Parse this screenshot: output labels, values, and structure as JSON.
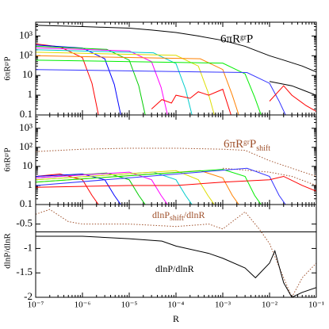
{
  "chart_data": [
    {
      "type": "line",
      "ylabel": "6πRᵍʳP",
      "annotation": "6πRᵍʳP",
      "annotation_color": "#000000",
      "xscale": "log",
      "yscale": "log",
      "xlim": [
        1e-07,
        0.1
      ],
      "xticks": [
        1e-07,
        1e-06,
        1e-05,
        0.0001,
        0.001,
        0.01,
        0.1
      ],
      "ylim": [
        0.1,
        5000
      ],
      "yticks": [
        0.1,
        1,
        10,
        {
          "value": 100,
          "label": "10²"
        },
        {
          "value": 1000,
          "label": "10³"
        }
      ],
      "series": [
        {
          "color": "#000000",
          "linestyle": "solid",
          "x": [
            1e-07,
            1e-06,
            1e-05,
            3e-05,
            0.0001,
            0.0003,
            0.001,
            0.003,
            0.01,
            0.02,
            0.05,
            0.1
          ],
          "values": [
            3500,
            3000,
            2500,
            2000,
            1500,
            1000,
            600,
            300,
            100,
            60,
            30,
            15
          ]
        },
        {
          "color": "#ff0000",
          "linestyle": "solid",
          "x": [
            1e-07,
            3.3e-07,
            1e-06,
            1.6e-06,
            2.2e-06
          ],
          "values": [
            400,
            280,
            80,
            4,
            0.1
          ]
        },
        {
          "color": "#0000ff",
          "linestyle": "solid",
          "x": [
            1e-07,
            1e-06,
            3e-06,
            4.8e-06,
            6.6e-06
          ],
          "values": [
            350,
            245,
            70,
            3.5,
            0.1
          ]
        },
        {
          "color": "#00cc00",
          "linestyle": "solid",
          "x": [
            1e-07,
            3.3e-06,
            1e-05,
            1.6e-05,
            2.2e-05
          ],
          "values": [
            300,
            210,
            60,
            3,
            0.1
          ]
        },
        {
          "color": "#ff00ff",
          "linestyle": "solid",
          "x": [
            1e-07,
            1e-05,
            3e-05,
            4.8e-05,
            6.6e-05
          ],
          "values": [
            250,
            175,
            50,
            2.5,
            0.1
          ]
        },
        {
          "color": "#00cccc",
          "linestyle": "solid",
          "x": [
            1e-07,
            3.3e-05,
            0.0001,
            0.00016,
            0.00022
          ],
          "values": [
            200,
            140,
            40,
            2,
            0.1
          ]
        },
        {
          "color": "#dddd00",
          "linestyle": "solid",
          "x": [
            1e-07,
            0.0001,
            0.0003,
            0.00048,
            0.00066
          ],
          "values": [
            150,
            105,
            30,
            1.5,
            0.1
          ]
        },
        {
          "color": "#ff8000",
          "linestyle": "solid",
          "x": [
            1e-07,
            0.00033,
            0.001,
            0.0016,
            0.0022
          ],
          "values": [
            100,
            70,
            20,
            1,
            0.1
          ]
        },
        {
          "color": "#00ee00",
          "linestyle": "solid",
          "x": [
            1e-07,
            0.001,
            0.003,
            0.0048,
            0.0066
          ],
          "values": [
            60,
            42,
            12,
            0.8,
            0.1
          ]
        },
        {
          "color": "#3333ff",
          "linestyle": "solid",
          "x": [
            1e-07,
            0.0033,
            0.01,
            0.016,
            0.022
          ],
          "values": [
            20,
            14,
            4,
            0.5,
            0.1
          ]
        },
        {
          "color": "#ff0000",
          "linestyle": "solid",
          "x": [
            3e-05,
            5e-05,
            8e-05,
            0.0001,
            0.0002,
            0.0003,
            0.0005,
            0.001,
            0.0015
          ],
          "values": [
            0.2,
            0.6,
            0.4,
            1,
            0.7,
            1.5,
            1,
            2,
            0.1
          ]
        },
        {
          "color": "#ff0000",
          "linestyle": "solid",
          "x": [
            0.01,
            0.02,
            0.03,
            0.06,
            0.1
          ],
          "values": [
            0.5,
            3,
            1,
            0.3,
            0.15
          ]
        },
        {
          "color": "#000000",
          "linestyle": "solid",
          "x": [
            0.01,
            0.03,
            0.1
          ],
          "values": [
            5,
            3,
            1
          ]
        }
      ]
    },
    {
      "type": "line",
      "ylabel": "6πRᵍʳP",
      "annotation": "6πRᵍʳP",
      "annotation_sub": "shift",
      "annotation_color": "#a0522d",
      "xscale": "log",
      "yscale": "log",
      "xlim": [
        1e-07,
        0.1
      ],
      "xticks": [
        1e-07,
        1e-06,
        1e-05,
        0.0001,
        0.001,
        0.01,
        0.1
      ],
      "ylim": [
        0.1,
        5000
      ],
      "yticks": [
        0.1,
        1,
        10,
        {
          "value": 100,
          "label": "10²"
        },
        {
          "value": 1000,
          "label": "10³"
        }
      ],
      "series": [
        {
          "color": "#a0522d",
          "linestyle": "dotted",
          "x": [
            1e-07,
            1e-06,
            1e-05,
            0.0001,
            0.001,
            0.003,
            0.01,
            0.03,
            0.1
          ],
          "values": [
            60,
            80,
            90,
            90,
            80,
            70,
            20,
            8,
            3
          ]
        },
        {
          "color": "#a0522d",
          "linestyle": "dotted",
          "x": [
            0.001,
            0.01,
            0.03,
            0.1
          ],
          "values": [
            8,
            5,
            3,
            1
          ]
        },
        {
          "color": "#ff0000",
          "linestyle": "solid",
          "x": [
            1e-07,
            3.3e-07,
            1e-06,
            1.6e-06,
            2.2e-06
          ],
          "values": [
            3,
            4,
            2,
            0.3,
            0.1
          ]
        },
        {
          "color": "#0000ff",
          "linestyle": "solid",
          "x": [
            1e-07,
            1e-06,
            3e-06,
            4.8e-06,
            6.6e-06
          ],
          "values": [
            3,
            4,
            2,
            0.3,
            0.1
          ]
        },
        {
          "color": "#00cc00",
          "linestyle": "solid",
          "x": [
            1e-07,
            3.3e-06,
            1e-05,
            1.6e-05,
            2.2e-05
          ],
          "values": [
            2.5,
            4.5,
            2,
            0.3,
            0.1
          ]
        },
        {
          "color": "#ff00ff",
          "linestyle": "solid",
          "x": [
            1e-07,
            1e-05,
            3e-05,
            4.8e-05,
            6.6e-05
          ],
          "values": [
            2.5,
            5,
            2,
            0.3,
            0.1
          ]
        },
        {
          "color": "#00cccc",
          "linestyle": "solid",
          "x": [
            1e-07,
            3.3e-05,
            0.0001,
            0.00016,
            0.00022
          ],
          "values": [
            2,
            5,
            2,
            0.3,
            0.1
          ]
        },
        {
          "color": "#dddd00",
          "linestyle": "solid",
          "x": [
            1e-07,
            0.0001,
            0.0003,
            0.00048,
            0.00066
          ],
          "values": [
            2,
            6,
            2,
            0.3,
            0.1
          ]
        },
        {
          "color": "#ff8000",
          "linestyle": "solid",
          "x": [
            1e-07,
            0.00033,
            0.001,
            0.0016,
            0.0022
          ],
          "values": [
            1.5,
            6,
            2.5,
            0.3,
            0.1
          ]
        },
        {
          "color": "#00ee00",
          "linestyle": "solid",
          "x": [
            1e-07,
            0.001,
            0.003,
            0.0048,
            0.0066
          ],
          "values": [
            1.5,
            7,
            3,
            0.3,
            0.1
          ]
        },
        {
          "color": "#3333ff",
          "linestyle": "solid",
          "x": [
            1e-07,
            0.0033,
            0.01,
            0.016,
            0.022
          ],
          "values": [
            1,
            8,
            3,
            0.3,
            0.1
          ]
        },
        {
          "color": "#ff0000",
          "linestyle": "solid",
          "x": [
            1e-07,
            1e-05,
            0.0001,
            0.001,
            0.01,
            0.02,
            0.05,
            0.1
          ],
          "values": [
            0.8,
            1,
            1,
            1.5,
            2,
            3,
            1,
            0.5
          ]
        }
      ]
    },
    {
      "type": "line",
      "ylabel": "dlnP/dlnR",
      "xlabel": "R",
      "annotation": "dlnP",
      "annotation_sub": "shift",
      "annotation_tail": "/dlnR",
      "annotation_color": "#a0522d",
      "annotation2": "dlnP/dlnR",
      "xscale": "log",
      "xlim": [
        1e-07,
        0.1
      ],
      "xticks": [
        {
          "value": 1e-07,
          "label": "10⁻⁷"
        },
        {
          "value": 1e-06,
          "label": "10⁻⁶"
        },
        {
          "value": 1e-05,
          "label": "10⁻⁵"
        },
        {
          "value": 0.0001,
          "label": "10⁻⁴"
        },
        {
          "value": 0.001,
          "label": "10⁻³"
        },
        {
          "value": 0.01,
          "label": "10⁻²"
        },
        {
          "value": 0.1,
          "label": "10⁻¹"
        }
      ],
      "ylim": [
        -2,
        -0.1
      ],
      "yticks": [
        -2,
        -1.5,
        -1,
        -0.5
      ],
      "hline": -0.66,
      "series": [
        {
          "color": "#a0522d",
          "linestyle": "dotted",
          "x": [
            1e-07,
            2e-07,
            5e-07,
            1e-06,
            1e-05,
            0.0001,
            0.0005,
            0.001,
            0.003,
            0.006,
            0.01,
            0.02,
            0.03,
            0.05,
            0.1
          ],
          "values": [
            -0.3,
            -0.2,
            -0.45,
            -0.5,
            -0.5,
            -0.55,
            -0.5,
            -0.6,
            -0.25,
            -0.6,
            -0.9,
            -1.6,
            -2,
            -1.6,
            -1.3
          ]
        },
        {
          "color": "#000000",
          "linestyle": "solid",
          "x": [
            1e-07,
            1e-06,
            1e-05,
            5e-05,
            0.0001,
            0.0005,
            0.001,
            0.003,
            0.005,
            0.01,
            0.013,
            0.02,
            0.03,
            0.05,
            0.1
          ],
          "values": [
            -0.75,
            -0.75,
            -0.8,
            -0.85,
            -0.95,
            -1.1,
            -1.2,
            -1.4,
            -1.6,
            -1.3,
            -1.05,
            -1.7,
            -2,
            -1.9,
            -1.8
          ]
        }
      ]
    }
  ]
}
